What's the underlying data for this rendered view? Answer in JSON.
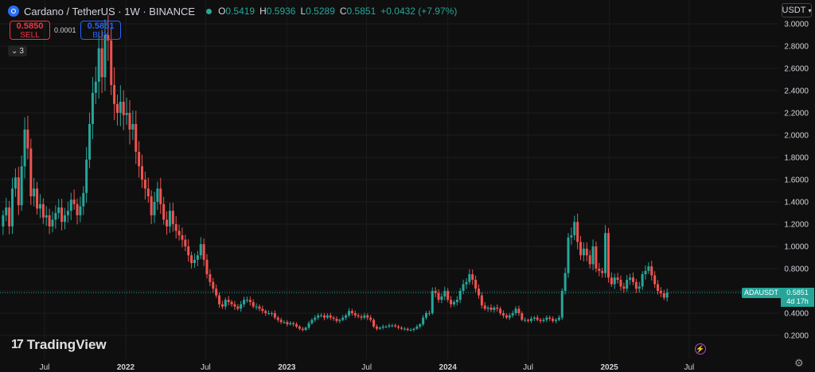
{
  "header": {
    "title": "Cardano / TetherUS · 1W · BINANCE",
    "ohlc": [
      {
        "k": "O",
        "v": "0.5419"
      },
      {
        "k": "H",
        "v": "0.5936"
      },
      {
        "k": "L",
        "v": "0.5289"
      },
      {
        "k": "C",
        "v": "0.5851"
      }
    ],
    "change": "+0.0432 (+7.97%)"
  },
  "trade": {
    "sell_price": "0.5850",
    "sell_label": "SELL",
    "buy_price": "0.5851",
    "buy_label": "BUY",
    "spread": "0.0001"
  },
  "indicators_count": "3",
  "currency": "USDT",
  "brand": "TradingView",
  "current_label": {
    "symbol": "ADAUSDT",
    "price": "0.5851",
    "countdown": "4d 17h"
  },
  "colors": {
    "up": "#26a69a",
    "down": "#ef5350",
    "background": "#0f0f0f"
  },
  "chart_data": {
    "type": "candlestick",
    "ylim": [
      0.0,
      3.05
    ],
    "y_ticks": [
      3.0,
      2.8,
      2.6,
      2.4,
      2.2,
      2.0,
      1.8,
      1.6,
      1.4,
      1.2,
      1.0,
      0.8,
      0.6,
      0.4,
      0.2
    ],
    "y_tick_labels": [
      "3.0000",
      "2.8000",
      "2.6000",
      "2.4000",
      "2.2000",
      "2.0000",
      "1.8000",
      "1.6000",
      "1.4000",
      "1.2000",
      "1.0000",
      "0.8000",
      "0.6000",
      "0.4000",
      "0.2000"
    ],
    "x_ticks": [
      {
        "label": "Jul",
        "date": "2021-07-01"
      },
      {
        "label": "2022",
        "date": "2022-01-01"
      },
      {
        "label": "Jul",
        "date": "2022-07-01"
      },
      {
        "label": "2023",
        "date": "2023-01-01"
      },
      {
        "label": "Jul",
        "date": "2023-07-01"
      },
      {
        "label": "2024",
        "date": "2024-01-01"
      },
      {
        "label": "Jul",
        "date": "2024-07-01"
      },
      {
        "label": "2025",
        "date": "2025-01-01"
      },
      {
        "label": "Jul",
        "date": "2025-07-01"
      }
    ],
    "first_week": "2021-03-29",
    "closes": [
      1.28,
      1.35,
      1.18,
      1.52,
      1.62,
      1.37,
      1.72,
      2.05,
      1.88,
      1.45,
      1.52,
      1.34,
      1.38,
      1.26,
      1.28,
      1.18,
      1.24,
      1.3,
      1.35,
      1.22,
      1.28,
      1.32,
      1.42,
      1.38,
      1.28,
      1.36,
      1.48,
      1.78,
      2.1,
      2.38,
      2.48,
      2.78,
      2.52,
      2.9,
      2.85,
      2.45,
      2.28,
      2.2,
      2.3,
      2.18,
      2.2,
      2.05,
      2.1,
      1.85,
      1.72,
      1.6,
      1.52,
      1.45,
      1.28,
      1.4,
      1.52,
      1.38,
      1.24,
      1.18,
      1.32,
      1.2,
      1.14,
      1.1,
      1.06,
      1.0,
      0.92,
      0.85,
      0.88,
      0.92,
      1.02,
      0.88,
      0.75,
      0.68,
      0.62,
      0.56,
      0.48,
      0.46,
      0.52,
      0.5,
      0.48,
      0.46,
      0.44,
      0.48,
      0.52,
      0.52,
      0.5,
      0.46,
      0.46,
      0.44,
      0.42,
      0.4,
      0.4,
      0.4,
      0.36,
      0.34,
      0.32,
      0.32,
      0.3,
      0.31,
      0.3,
      0.28,
      0.26,
      0.25,
      0.27,
      0.31,
      0.34,
      0.36,
      0.38,
      0.38,
      0.36,
      0.38,
      0.36,
      0.35,
      0.33,
      0.34,
      0.36,
      0.38,
      0.42,
      0.4,
      0.38,
      0.37,
      0.36,
      0.38,
      0.36,
      0.34,
      0.28,
      0.26,
      0.27,
      0.28,
      0.28,
      0.29,
      0.29,
      0.28,
      0.27,
      0.26,
      0.26,
      0.25,
      0.25,
      0.26,
      0.28,
      0.3,
      0.36,
      0.4,
      0.4,
      0.6,
      0.58,
      0.52,
      0.55,
      0.6,
      0.52,
      0.48,
      0.5,
      0.52,
      0.6,
      0.66,
      0.68,
      0.75,
      0.7,
      0.62,
      0.56,
      0.47,
      0.44,
      0.45,
      0.43,
      0.45,
      0.44,
      0.4,
      0.38,
      0.36,
      0.38,
      0.4,
      0.44,
      0.4,
      0.34,
      0.34,
      0.33,
      0.35,
      0.36,
      0.34,
      0.33,
      0.34,
      0.36,
      0.35,
      0.33,
      0.34,
      0.36,
      0.6,
      0.76,
      1.08,
      1.1,
      1.22,
      1.04,
      0.92,
      0.98,
      0.92,
      0.84,
      1.0,
      0.8,
      0.78,
      0.76,
      1.12,
      0.72,
      0.66,
      0.72,
      0.7,
      0.64,
      0.62,
      0.7,
      0.72,
      0.68,
      0.62,
      0.64,
      0.75,
      0.78,
      0.82,
      0.74,
      0.66,
      0.6,
      0.58,
      0.54,
      0.5851
    ]
  }
}
